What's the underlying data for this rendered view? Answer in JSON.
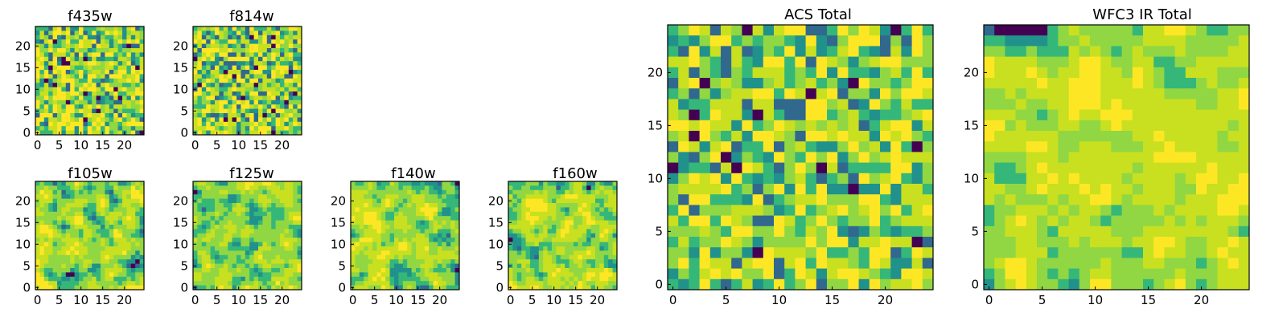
{
  "palette": [
    "#440154",
    "#31688e",
    "#21918c",
    "#35b779",
    "#90d743",
    "#c8e020",
    "#fde725"
  ],
  "chart_data": [
    {
      "type": "heatmap",
      "title": "f435w",
      "grid_size": 25,
      "xticks": [
        "0",
        "5",
        "10",
        "15",
        "20"
      ],
      "yticks": [
        "0",
        "5",
        "10",
        "15",
        "20"
      ],
      "seed": 11,
      "smooth": 0
    },
    {
      "type": "heatmap",
      "title": "f814w",
      "grid_size": 25,
      "xticks": [
        "0",
        "5",
        "10",
        "15",
        "20"
      ],
      "yticks": [
        "0",
        "5",
        "10",
        "15",
        "20"
      ],
      "seed": 23,
      "smooth": 0
    },
    {
      "type": "heatmap",
      "title": "f105w",
      "grid_size": 25,
      "xticks": [
        "0",
        "5",
        "10",
        "15",
        "20"
      ],
      "yticks": [
        "0",
        "5",
        "10",
        "15",
        "20"
      ],
      "seed": 37,
      "smooth": 1
    },
    {
      "type": "heatmap",
      "title": "f125w",
      "grid_size": 25,
      "xticks": [
        "0",
        "5",
        "10",
        "15",
        "20"
      ],
      "yticks": [
        "0",
        "5",
        "10",
        "15",
        "20"
      ],
      "seed": 41,
      "smooth": 1
    },
    {
      "type": "heatmap",
      "title": "f140w",
      "grid_size": 25,
      "xticks": [
        "0",
        "5",
        "10",
        "15",
        "20"
      ],
      "yticks": [
        "0",
        "5",
        "10",
        "15",
        "20"
      ],
      "seed": 53,
      "smooth": 1
    },
    {
      "type": "heatmap",
      "title": "f160w",
      "grid_size": 25,
      "xticks": [
        "0",
        "5",
        "10",
        "15",
        "20"
      ],
      "yticks": [
        "0",
        "5",
        "10",
        "15",
        "20"
      ],
      "seed": 67,
      "smooth": 1
    },
    {
      "type": "heatmap",
      "title": "ACS Total",
      "grid_size": 25,
      "xticks": [
        "0",
        "5",
        "10",
        "15",
        "20"
      ],
      "yticks": [
        "0",
        "5",
        "10",
        "15",
        "20"
      ],
      "seed": 79,
      "smooth": 0
    },
    {
      "type": "heatmap",
      "title": "WFC3 IR Total",
      "grid_size": 25,
      "xticks": [
        "0",
        "5",
        "10",
        "15",
        "20"
      ],
      "yticks": [
        "0",
        "5",
        "10",
        "15",
        "20"
      ],
      "seed": 97,
      "smooth": 1
    }
  ]
}
